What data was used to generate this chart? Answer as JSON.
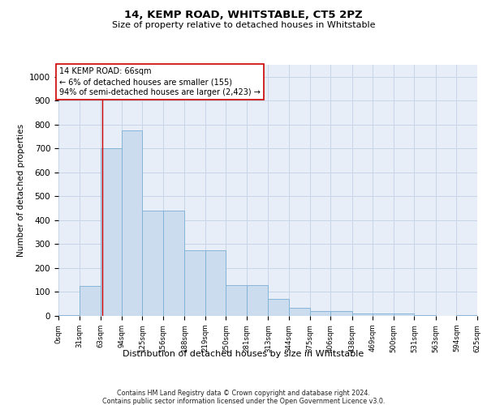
{
  "title": "14, KEMP ROAD, WHITSTABLE, CT5 2PZ",
  "subtitle": "Size of property relative to detached houses in Whitstable",
  "xlabel": "Distribution of detached houses by size in Whitstable",
  "ylabel": "Number of detached properties",
  "bar_color": "#ccdcef",
  "bar_edge_color": "#7bafd4",
  "background_color": "#ffffff",
  "plot_bg_color": "#e8eef8",
  "grid_color": "#c8d4e8",
  "vline_x": 66,
  "vline_color": "#cc0000",
  "bin_edges": [
    0,
    31,
    63,
    94,
    125,
    156,
    188,
    219,
    250,
    281,
    313,
    344,
    375,
    406,
    438,
    469,
    500,
    531,
    563,
    594,
    625
  ],
  "bar_heights": [
    5,
    125,
    700,
    775,
    440,
    440,
    275,
    275,
    130,
    130,
    70,
    35,
    20,
    20,
    10,
    10,
    10,
    5,
    0,
    5
  ],
  "ylim": [
    0,
    1050
  ],
  "yticks": [
    0,
    100,
    200,
    300,
    400,
    500,
    600,
    700,
    800,
    900,
    1000
  ],
  "annotation_text": "14 KEMP ROAD: 66sqm\n← 6% of detached houses are smaller (155)\n94% of semi-detached houses are larger (2,423) →",
  "footer_line1": "Contains HM Land Registry data © Crown copyright and database right 2024.",
  "footer_line2": "Contains public sector information licensed under the Open Government Licence v3.0."
}
